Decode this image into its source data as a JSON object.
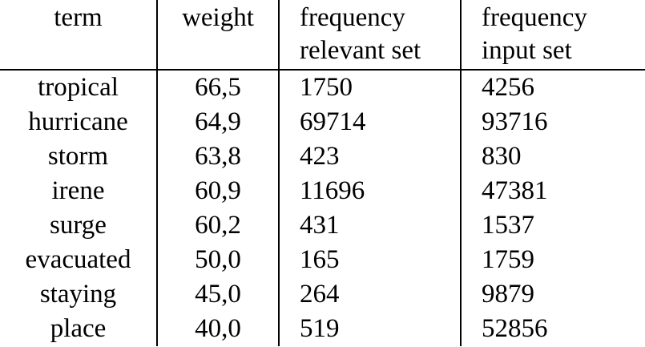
{
  "table": {
    "headers": {
      "term": "term",
      "weight": "weight",
      "relevant_line1": "frequency",
      "relevant_line2": "relevant set",
      "input_line1": "frequency",
      "input_line2": "input set"
    },
    "rows": [
      {
        "term": "tropical",
        "weight": "66,5",
        "relevant": "1750",
        "input": "4256"
      },
      {
        "term": "hurricane",
        "weight": "64,9",
        "relevant": "69714",
        "input": "93716"
      },
      {
        "term": "storm",
        "weight": "63,8",
        "relevant": "423",
        "input": "830"
      },
      {
        "term": "irene",
        "weight": "60,9",
        "relevant": "11696",
        "input": "47381"
      },
      {
        "term": "surge",
        "weight": "60,2",
        "relevant": "431",
        "input": "1537"
      },
      {
        "term": "evacuated",
        "weight": "50,0",
        "relevant": "165",
        "input": "1759"
      },
      {
        "term": "staying",
        "weight": "45,0",
        "relevant": "264",
        "input": "9879"
      },
      {
        "term": "place",
        "weight": "40,0",
        "relevant": "519",
        "input": "52856"
      }
    ]
  }
}
